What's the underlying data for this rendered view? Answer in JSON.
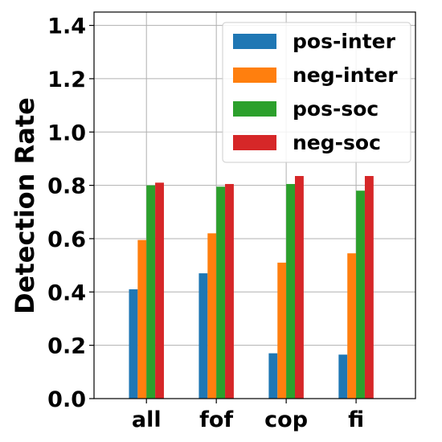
{
  "chart_data": {
    "type": "bar",
    "title": "",
    "xlabel": "",
    "ylabel": "Detection Rate",
    "categories": [
      "all",
      "fof",
      "cop",
      "fi"
    ],
    "series": [
      {
        "name": "pos-inter",
        "color": "#1f77b4",
        "values": [
          0.41,
          0.47,
          0.17,
          0.165
        ]
      },
      {
        "name": "neg-inter",
        "color": "#ff7f0e",
        "values": [
          0.595,
          0.62,
          0.51,
          0.545
        ]
      },
      {
        "name": "pos-soc",
        "color": "#2ca02c",
        "values": [
          0.8,
          0.795,
          0.805,
          0.78
        ]
      },
      {
        "name": "neg-soc",
        "color": "#d62728",
        "values": [
          0.81,
          0.805,
          0.835,
          0.835
        ]
      }
    ],
    "ylim": [
      0.0,
      1.45
    ],
    "yticks": [
      "0.0",
      "0.2",
      "0.4",
      "0.6",
      "0.8",
      "1.0",
      "1.2",
      "1.4"
    ],
    "grid": true,
    "legend_position": "top-right"
  }
}
